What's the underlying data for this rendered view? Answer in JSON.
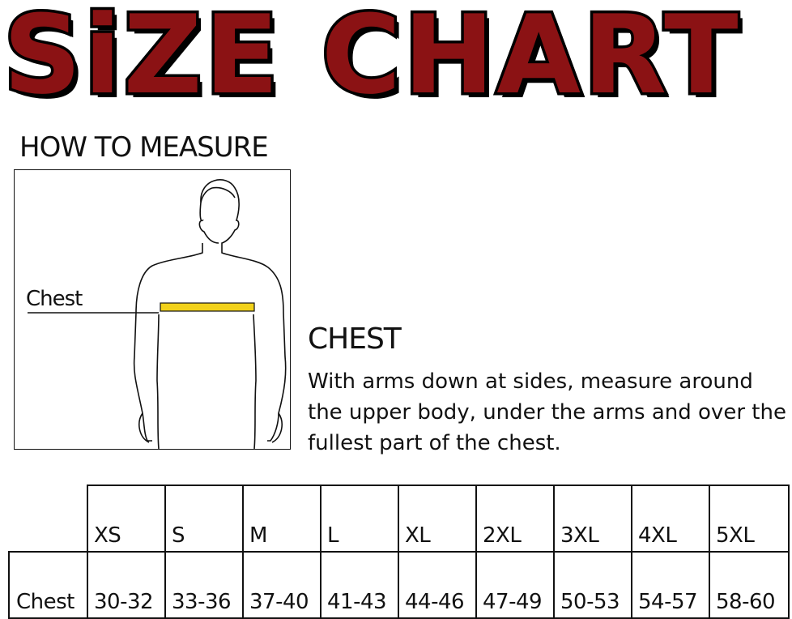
{
  "title": "SiZE CHART",
  "how_to_measure": "HOW TO MEASURE",
  "figure_label": "Chest",
  "chest_heading": "CHEST",
  "chest_description": "With arms down at sides, measure around the upper body, under the arms and over the fullest part of the chest.",
  "colors": {
    "title_red": "#8b1214",
    "tape_yellow": "#f2d21b"
  },
  "table": {
    "sizes": [
      "XS",
      "S",
      "M",
      "L",
      "XL",
      "2XL",
      "3XL",
      "4XL",
      "5XL"
    ],
    "rows": [
      {
        "label": "Chest",
        "values": [
          "30-32",
          "33-36",
          "37-40",
          "41-43",
          "44-46",
          "47-49",
          "50-53",
          "54-57",
          "58-60"
        ]
      }
    ]
  }
}
